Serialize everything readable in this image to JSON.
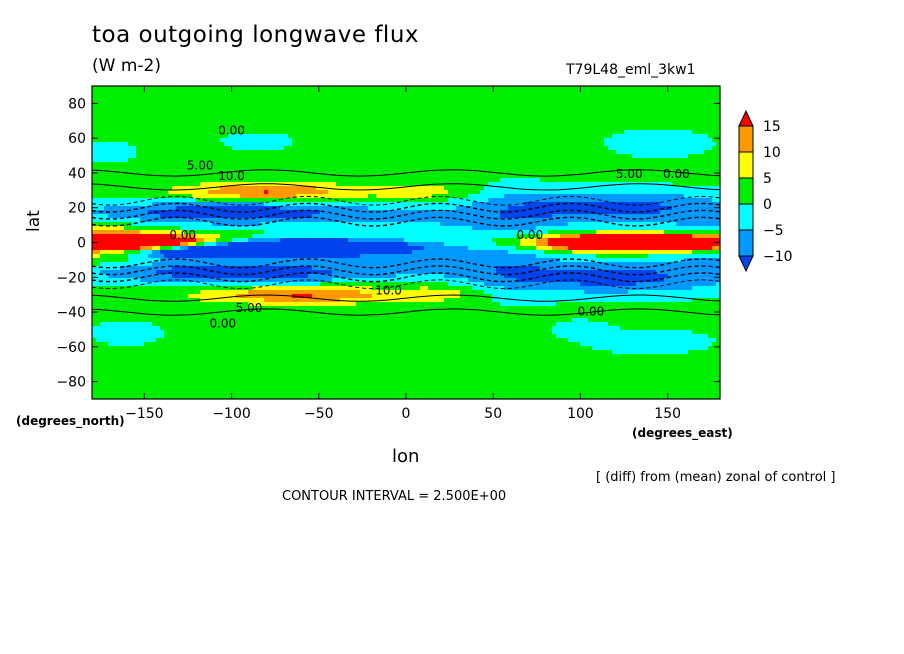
{
  "chart_data": {
    "type": "heatmap",
    "title": "toa outgoing longwave flux",
    "units": "(W m-2)",
    "run_label": "T79L48_eml_3kw1",
    "xlabel": "lon",
    "x_unit": "(degrees_east)",
    "ylabel": "lat",
    "y_unit": "(degrees_north)",
    "note": "[ (diff) from (mean) zonal of control ]",
    "contour_interval": "CONTOUR INTERVAL = 2.500E+00",
    "xlim": [
      -180,
      180
    ],
    "ylim": [
      -90,
      90
    ],
    "x_ticks": [
      -150,
      -100,
      -50,
      0,
      50,
      100,
      150
    ],
    "y_ticks": [
      80,
      60,
      40,
      20,
      0,
      -20,
      -40,
      -60,
      -80
    ],
    "colorbar": {
      "levels": [
        15,
        10,
        5,
        0,
        -5,
        -10
      ],
      "bands": [
        {
          "range": "> 15",
          "color": "#ff0000"
        },
        {
          "range": "10 to 15",
          "color": "#ff9900"
        },
        {
          "range": "5 to 10",
          "color": "#ffff00"
        },
        {
          "range": "0 to 5",
          "color": "#00ee00"
        },
        {
          "range": "-5 to 0",
          "color": "#00ffff"
        },
        {
          "range": "-10 to -5",
          "color": "#0099ff"
        },
        {
          "range": "< -10",
          "color": "#0044ee"
        }
      ]
    },
    "contour_labels": [
      {
        "text": "0.00",
        "lon": -100,
        "lat": 62
      },
      {
        "text": "5.00",
        "lon": -118,
        "lat": 42
      },
      {
        "text": "10.0",
        "lon": -100,
        "lat": 36
      },
      {
        "text": "0.00",
        "lon": -128,
        "lat": 2
      },
      {
        "text": "10.0",
        "lon": -10,
        "lat": -30
      },
      {
        "text": "5.00",
        "lon": -90,
        "lat": -40
      },
      {
        "text": "0.00",
        "lon": -105,
        "lat": -49
      },
      {
        "text": "5.00",
        "lon": 128,
        "lat": 37
      },
      {
        "text": "0.00",
        "lon": 155,
        "lat": 37
      },
      {
        "text": "0.00",
        "lon": 106,
        "lat": -42
      },
      {
        "text": "0.00",
        "lon": 71,
        "lat": 2
      }
    ]
  }
}
